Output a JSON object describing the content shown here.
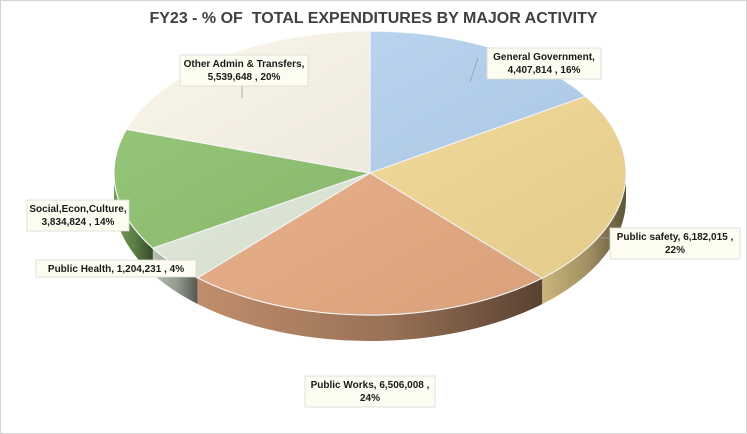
{
  "chart_data": {
    "type": "pie",
    "title": "FY23 - % OF  TOTAL EXPENDITURES BY MAJOR ACTIVITY",
    "legend": "none",
    "slices": [
      {
        "name": "General Government",
        "value": 4407814,
        "color": "#b8d6f5",
        "label_lines": [
          "General Government,",
          "4,407,814 , 16%"
        ]
      },
      {
        "name": "Public safety",
        "value": 6182015,
        "color": "#fbe098",
        "label_lines": [
          "Public safety,  6,182,015 ,",
          "22%"
        ]
      },
      {
        "name": "Public Works",
        "value": 6506008,
        "color": "#efb186",
        "label_lines": [
          "Public Works,  6,506,008 ,",
          "24%"
        ]
      },
      {
        "name": "Public Health",
        "value": 1204231,
        "color": "#e5efdd",
        "label_lines": [
          "Public Health,  1,204,231 , 4%"
        ]
      },
      {
        "name": "Social,Econ,Culture",
        "value": 3834824,
        "color": "#8dc36c",
        "label_lines": [
          "Social,Econ,Culture,",
          "3,834,824 , 14%"
        ]
      },
      {
        "name": "Other Admin & Transfers",
        "value": 5539648,
        "color": "#fbf6e8",
        "label_lines": [
          "Other Admin & Transfers,",
          "5,539,648 , 20%"
        ]
      }
    ]
  }
}
